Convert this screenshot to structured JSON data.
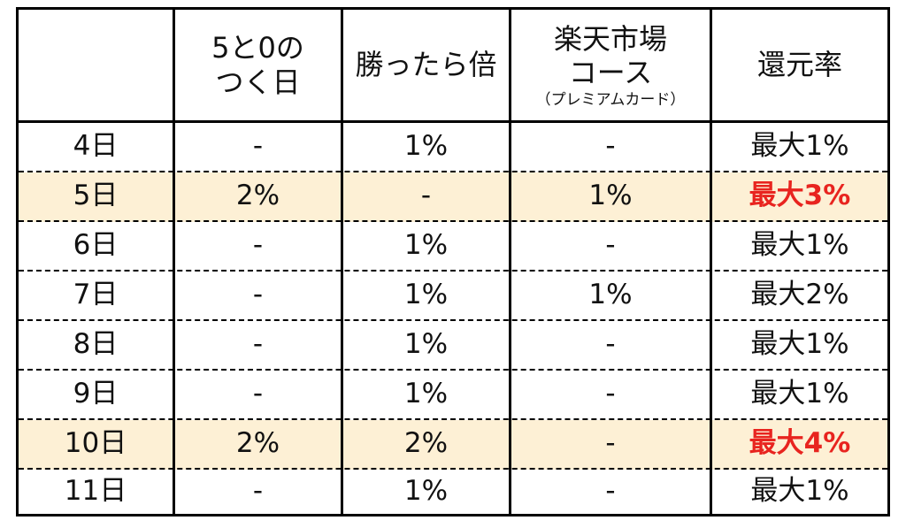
{
  "header": {
    "col1_line1": "5と0の",
    "col1_line2": "つく日",
    "col2": "勝ったら倍",
    "col3_line1": "楽天市場",
    "col3_line2": "コース",
    "col3_sub": "（プレミアムカード）",
    "col4": "還元率"
  },
  "rows": [
    {
      "day": "4日",
      "c1": "-",
      "c2": "1%",
      "c3": "-",
      "c4": "最大1%"
    },
    {
      "day": "5日",
      "c1": "2%",
      "c2": "-",
      "c3": "1%",
      "c4": "最大3%"
    },
    {
      "day": "6日",
      "c1": "-",
      "c2": "1%",
      "c3": "-",
      "c4": "最大1%"
    },
    {
      "day": "7日",
      "c1": "-",
      "c2": "1%",
      "c3": "1%",
      "c4": "最大2%"
    },
    {
      "day": "8日",
      "c1": "-",
      "c2": "1%",
      "c3": "-",
      "c4": "最大1%"
    },
    {
      "day": "9日",
      "c1": "-",
      "c2": "1%",
      "c3": "-",
      "c4": "最大1%"
    },
    {
      "day": "10日",
      "c1": "2%",
      "c2": "2%",
      "c3": "-",
      "c4": "最大4%"
    },
    {
      "day": "11日",
      "c1": "-",
      "c2": "1%",
      "c3": "-",
      "c4": "最大1%"
    }
  ],
  "colors": {
    "highlight_row": "#fdf0d5",
    "highlight_text": "#e8241f"
  }
}
